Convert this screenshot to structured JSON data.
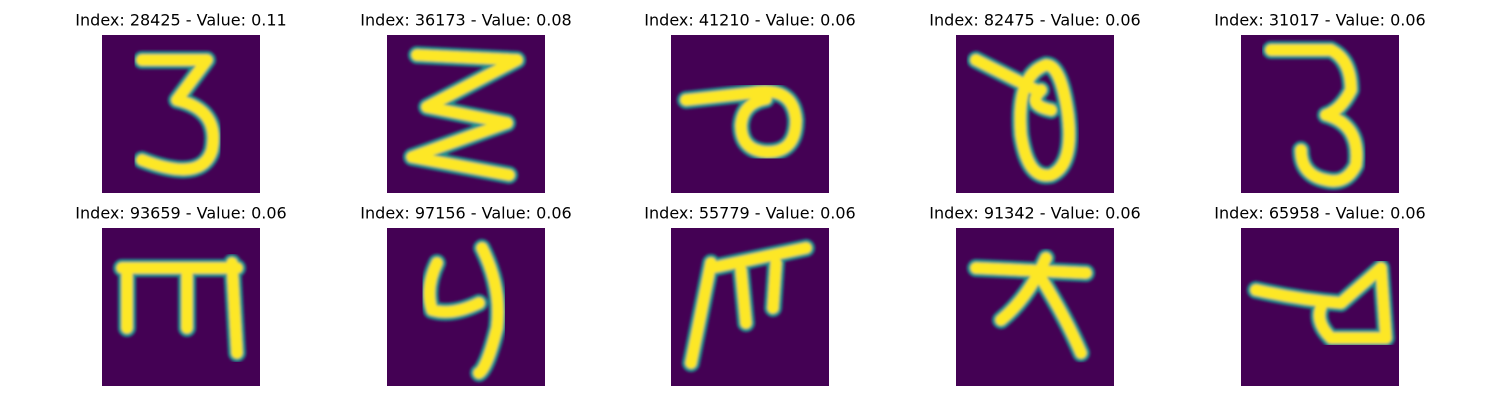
{
  "panels": [
    {
      "title": "Index: 28425 - Value: 0.11"
    },
    {
      "title": "Index: 36173 - Value: 0.08"
    },
    {
      "title": "Index: 41210 - Value: 0.06"
    },
    {
      "title": "Index: 82475 - Value: 0.06"
    },
    {
      "title": "Index: 31017 - Value: 0.06"
    },
    {
      "title": "Index: 93659 - Value: 0.06"
    },
    {
      "title": "Index: 97156 - Value: 0.06"
    },
    {
      "title": "Index: 55779 - Value: 0.06"
    },
    {
      "title": "Index: 91342 - Value: 0.06"
    },
    {
      "title": "Index: 65958 - Value: 0.06"
    }
  ]
}
